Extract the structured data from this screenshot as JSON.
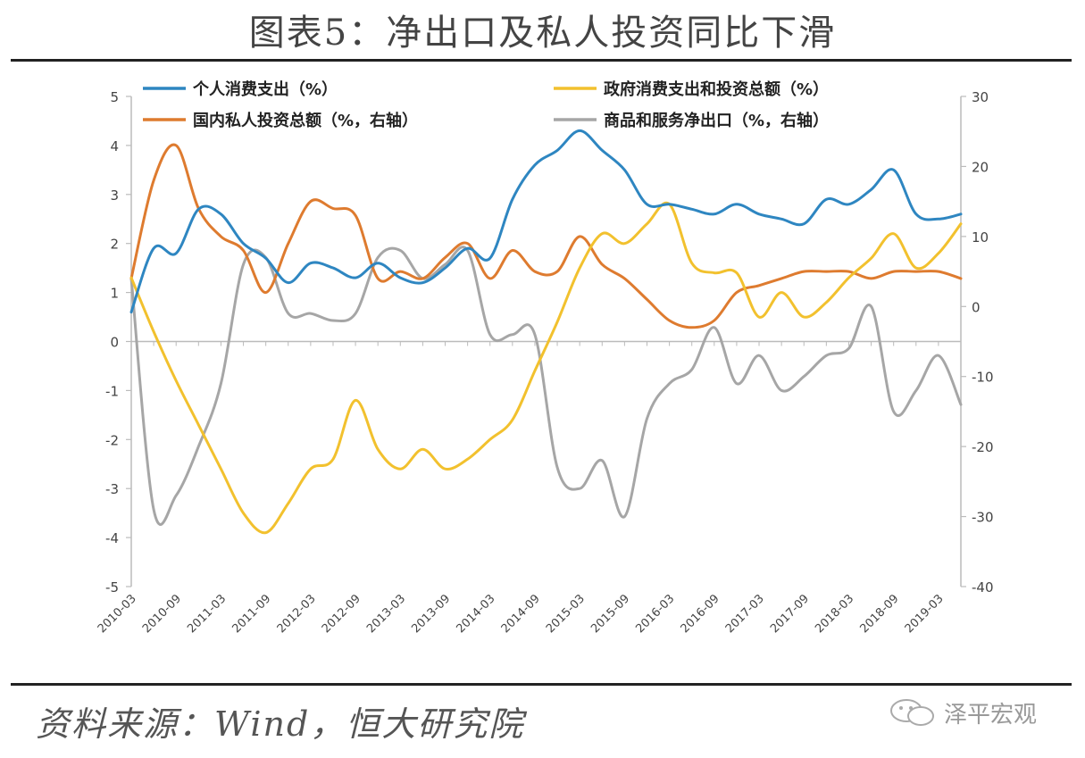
{
  "title": "图表5：净出口及私人投资同比下滑",
  "source": "资料来源：Wind，恒大研究院",
  "watermark": "泽平宏观",
  "chart_data": {
    "type": "line",
    "x": [
      "2010-03",
      "2010-06",
      "2010-09",
      "2010-12",
      "2011-03",
      "2011-06",
      "2011-09",
      "2011-12",
      "2012-03",
      "2012-06",
      "2012-09",
      "2012-12",
      "2013-03",
      "2013-06",
      "2013-09",
      "2013-12",
      "2014-03",
      "2014-06",
      "2014-09",
      "2014-12",
      "2015-03",
      "2015-06",
      "2015-09",
      "2015-12",
      "2016-03",
      "2016-06",
      "2016-09",
      "2016-12",
      "2017-03",
      "2017-06",
      "2017-09",
      "2017-12",
      "2018-03",
      "2018-06",
      "2018-09",
      "2018-12",
      "2019-03",
      "2019-06"
    ],
    "x_tick_labels": [
      "2010-03",
      "2010-09",
      "2011-03",
      "2011-09",
      "2012-03",
      "2012-09",
      "2013-03",
      "2013-09",
      "2014-03",
      "2014-09",
      "2015-03",
      "2015-09",
      "2016-03",
      "2016-09",
      "2017-03",
      "2017-09",
      "2018-03",
      "2018-09",
      "2019-03"
    ],
    "y_left": {
      "ylim": [
        -5,
        5
      ],
      "ticks": [
        "5",
        "4",
        "3",
        "2",
        "1",
        "0",
        "-1",
        "-2",
        "-3",
        "-4",
        "-5"
      ]
    },
    "y_right": {
      "ylim": [
        -40,
        30
      ],
      "ticks": [
        "30",
        "20",
        "10",
        "0",
        "-10",
        "-20",
        "-30",
        "-40"
      ]
    },
    "legend_position": "top",
    "series": [
      {
        "name": "个人消费支出（%）",
        "axis": "left",
        "color": "#2e86c1",
        "values": [
          0.6,
          1.9,
          1.8,
          2.7,
          2.6,
          2.0,
          1.7,
          1.2,
          1.6,
          1.5,
          1.3,
          1.6,
          1.3,
          1.2,
          1.5,
          1.9,
          1.7,
          2.9,
          3.6,
          3.9,
          4.3,
          3.9,
          3.5,
          2.8,
          2.8,
          2.7,
          2.6,
          2.8,
          2.6,
          2.5,
          2.4,
          2.9,
          2.8,
          3.1,
          3.5,
          2.6,
          2.5,
          2.6
        ]
      },
      {
        "name": "政府消费支出和投资总额（%）",
        "axis": "left",
        "color": "#f2c12e",
        "values": [
          1.3,
          0.2,
          -0.8,
          -1.7,
          -2.6,
          -3.5,
          -3.9,
          -3.3,
          -2.6,
          -2.4,
          -1.2,
          -2.2,
          -2.6,
          -2.2,
          -2.6,
          -2.4,
          -2.0,
          -1.6,
          -0.6,
          0.4,
          1.5,
          2.2,
          2.0,
          2.4,
          2.8,
          1.6,
          1.4,
          1.4,
          0.5,
          1.0,
          0.5,
          0.8,
          1.3,
          1.7,
          2.2,
          1.5,
          1.8,
          2.4
        ]
      },
      {
        "name": "国内私人投资总额（%，右轴）",
        "axis": "right",
        "color": "#de7b2f",
        "values": [
          4,
          18,
          23,
          14,
          10,
          8,
          2,
          9,
          15,
          14,
          13,
          4,
          5,
          4,
          7,
          9,
          4,
          8,
          5,
          5,
          10,
          6,
          4,
          1,
          -2,
          -3,
          -2,
          2,
          3,
          4,
          5,
          5,
          5,
          4,
          5,
          5,
          5,
          4
        ]
      },
      {
        "name": "商品和服务净出口（%，右轴）",
        "axis": "right",
        "color": "#a6a6a6",
        "values": [
          4,
          -29,
          -27,
          -20,
          -11,
          6,
          7,
          -1,
          -1,
          -2,
          -1,
          7,
          8,
          4,
          6,
          8,
          -4,
          -4,
          -4,
          -23,
          -26,
          -22,
          -30,
          -16,
          -11,
          -9,
          -3,
          -11,
          -7,
          -12,
          -10,
          -7,
          -6,
          0,
          -15,
          -12,
          -7,
          -14
        ]
      }
    ]
  }
}
